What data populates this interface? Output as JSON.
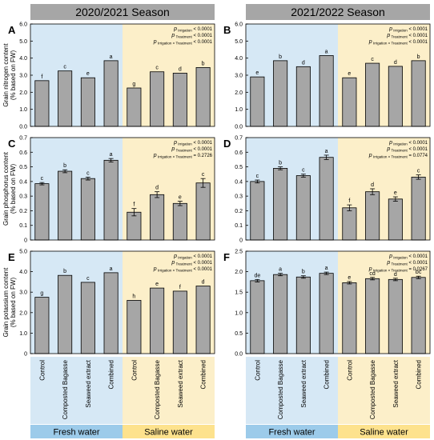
{
  "seasons": [
    "2020/2021 Season",
    "2021/2022 Season"
  ],
  "categories": [
    "Control",
    "Composted Bagasse",
    "Seaweed extract",
    "Combined"
  ],
  "water_groups": [
    "Fresh water",
    "Saline water"
  ],
  "colors": {
    "fresh_bg": "#d6e8f5",
    "saline_bg": "#fcefc9",
    "fresh_label": "#9ccbea",
    "saline_label": "#fde28d",
    "header": "#a6a6a6",
    "bar": "#a6a6a6"
  },
  "chart_data": [
    {
      "type": "bar",
      "panel": "A",
      "season": "2020/2021 Season",
      "ylabel": "Grain nitrogen content\n(% based on FW)",
      "ylim": [
        0,
        6
      ],
      "yticks": [
        "0.0",
        "1.0",
        "2.0",
        "3.0",
        "4.0",
        "5.0",
        "6.0"
      ],
      "error_bars": false,
      "stats": [
        [
          "Irrigation",
          "< 0.0001"
        ],
        [
          "Treatment",
          "< 0.0001"
        ],
        [
          "Irrigation × Treatment",
          "< 0.0001"
        ]
      ],
      "series": [
        {
          "name": "Fresh water",
          "values": [
            2.68,
            3.25,
            2.85,
            3.85
          ],
          "letters": [
            "f",
            "c",
            "e",
            "a"
          ]
        },
        {
          "name": "Saline water",
          "values": [
            2.25,
            3.2,
            3.12,
            3.45
          ],
          "letters": [
            "g",
            "c",
            "d",
            "b"
          ]
        }
      ]
    },
    {
      "type": "bar",
      "panel": "B",
      "season": "2021/2022 Season",
      "ylabel": "",
      "ylim": [
        0,
        6
      ],
      "yticks": [
        "0.0",
        "1.0",
        "2.0",
        "3.0",
        "4.0",
        "5.0",
        "6.0"
      ],
      "error_bars": false,
      "stats": [
        [
          "Irrigation",
          "< 0.0001"
        ],
        [
          "Treatment",
          "< 0.0001"
        ],
        [
          "Irrigation × Treatment",
          "< 0.0001"
        ]
      ],
      "series": [
        {
          "name": "Fresh water",
          "values": [
            2.9,
            3.85,
            3.5,
            4.15
          ],
          "letters": [
            "e",
            "b",
            "d",
            "a"
          ]
        },
        {
          "name": "Saline water",
          "values": [
            2.85,
            3.7,
            3.52,
            3.85
          ],
          "letters": [
            "e",
            "c",
            "d",
            "b"
          ]
        }
      ]
    },
    {
      "type": "bar",
      "panel": "C",
      "season": "2020/2021 Season",
      "ylabel": "Grain phosphorus content\n(% based on FW)",
      "ylim": [
        0,
        0.7
      ],
      "yticks": [
        "0",
        "0.1",
        "0.2",
        "0.3",
        "0.4",
        "0.5",
        "0.6",
        "0.7"
      ],
      "error_bars": true,
      "stats": [
        [
          "Irrigation",
          "< 0.0001"
        ],
        [
          "Treatment",
          "< 0.0001"
        ],
        [
          "Irrigation × Treatment",
          "= 0.2726"
        ]
      ],
      "series": [
        {
          "name": "Fresh water",
          "values": [
            0.385,
            0.47,
            0.42,
            0.545
          ],
          "errors": [
            0.008,
            0.01,
            0.01,
            0.012
          ],
          "letters": [
            "c",
            "b",
            "c",
            "a"
          ]
        },
        {
          "name": "Saline water",
          "values": [
            0.19,
            0.31,
            0.25,
            0.39
          ],
          "errors": [
            0.025,
            0.02,
            0.015,
            0.03
          ],
          "letters": [
            "f",
            "d",
            "e",
            "c"
          ]
        }
      ]
    },
    {
      "type": "bar",
      "panel": "D",
      "season": "2021/2022 Season",
      "ylabel": "",
      "ylim": [
        0,
        0.7
      ],
      "yticks": [
        "0",
        "0.1",
        "0.2",
        "0.3",
        "0.4",
        "0.5",
        "0.6",
        "0.7"
      ],
      "error_bars": true,
      "stats": [
        [
          "Irrigation",
          "< 0.0001"
        ],
        [
          "Treatment",
          "< 0.0001"
        ],
        [
          "Irrigation × Treatment",
          "= 0.0774"
        ]
      ],
      "series": [
        {
          "name": "Fresh water",
          "values": [
            0.4,
            0.49,
            0.44,
            0.565
          ],
          "errors": [
            0.01,
            0.01,
            0.01,
            0.015
          ],
          "letters": [
            "c",
            "b",
            "c",
            "a"
          ]
        },
        {
          "name": "Saline water",
          "values": [
            0.22,
            0.33,
            0.28,
            0.43
          ],
          "errors": [
            0.02,
            0.02,
            0.015,
            0.015
          ],
          "letters": [
            "f",
            "d",
            "e",
            "c"
          ]
        }
      ]
    },
    {
      "type": "bar",
      "panel": "E",
      "season": "2020/2021 Season",
      "ylabel": "Grain potassium content\n(% based on FW)",
      "ylim": [
        0,
        5
      ],
      "yticks": [
        "0",
        "1.0",
        "2.0",
        "3.0",
        "4.0",
        "5.0"
      ],
      "error_bars": false,
      "stats": [
        [
          "Irrigation",
          "< 0.0001"
        ],
        [
          "Treatment",
          "< 0.0001"
        ],
        [
          "Irrigation × Treatment",
          "< 0.0001"
        ]
      ],
      "series": [
        {
          "name": "Fresh water",
          "values": [
            2.75,
            3.82,
            3.48,
            3.95
          ],
          "letters": [
            "g",
            "b",
            "c",
            "a"
          ]
        },
        {
          "name": "Saline water",
          "values": [
            2.6,
            3.2,
            3.05,
            3.3
          ],
          "letters": [
            "h",
            "e",
            "f",
            "d"
          ]
        }
      ]
    },
    {
      "type": "bar",
      "panel": "F",
      "season": "2021/2022 Season",
      "ylabel": "",
      "ylim": [
        0,
        2.5
      ],
      "yticks": [
        "0.0",
        "0.5",
        "1.0",
        "1.5",
        "2.0",
        "2.5"
      ],
      "error_bars": true,
      "stats": [
        [
          "Irrigation",
          "< 0.0001"
        ],
        [
          "Treatment",
          "< 0.0001"
        ],
        [
          "Irrigation × Treatment",
          "= 0.0267"
        ]
      ],
      "series": [
        {
          "name": "Fresh water",
          "values": [
            1.78,
            1.93,
            1.87,
            1.96
          ],
          "errors": [
            0.03,
            0.03,
            0.03,
            0.03
          ],
          "letters": [
            "de",
            "a",
            "b",
            "a"
          ]
        },
        {
          "name": "Saline water",
          "values": [
            1.73,
            1.83,
            1.81,
            1.86
          ],
          "errors": [
            0.03,
            0.03,
            0.03,
            0.03
          ],
          "letters": [
            "e",
            "cd",
            "d",
            "bc"
          ]
        }
      ]
    }
  ]
}
